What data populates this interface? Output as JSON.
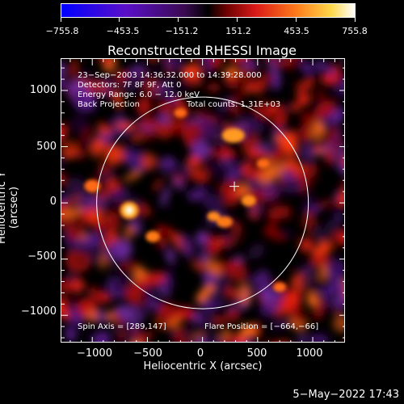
{
  "colorbar": {
    "tick_labels": [
      "−755.8",
      "−453.5",
      "−151.2",
      "151.2",
      "453.5",
      "755.8"
    ],
    "colors": [
      "#0000ff",
      "#5a0fc8",
      "#3a0a50",
      "#000000",
      "#6a0000",
      "#d81818",
      "#ff7a1a",
      "#ffd84a",
      "#ffffff"
    ]
  },
  "title": "Reconstructed RHESSI Image",
  "info": {
    "time": "23−Sep−2003 14:36:32.000 to 14:39:28.000",
    "detectors": "Detectors: 7F 8F 9F, Att 0",
    "energy": "Energy Range: 6.0 − 12.0 keV",
    "method": "Back Projection",
    "counts": "Total counts: 1.31E+03",
    "spin_axis": "Spin Axis = [289,147]",
    "flare_position": "Flare Position = [−664,−66]"
  },
  "axes": {
    "xlabel": "Heliocentric X (arcsec)",
    "ylabel": "Heliocentric Y (arcsec)",
    "x_ticks": [
      "−1000",
      "−500",
      "0",
      "500",
      "1000"
    ],
    "y_ticks": [
      "1000",
      "500",
      "0",
      "−500",
      "−1000"
    ],
    "x_range": [
      -1280,
      1300
    ],
    "y_range": [
      -1250,
      1280
    ]
  },
  "image": {
    "solar_limb_radius_arcsec": 960,
    "spin_axis_marker": [
      289,
      147
    ],
    "bright_source": [
      -664,
      -66
    ]
  },
  "date_stamp": "5−May−2022 17:43"
}
